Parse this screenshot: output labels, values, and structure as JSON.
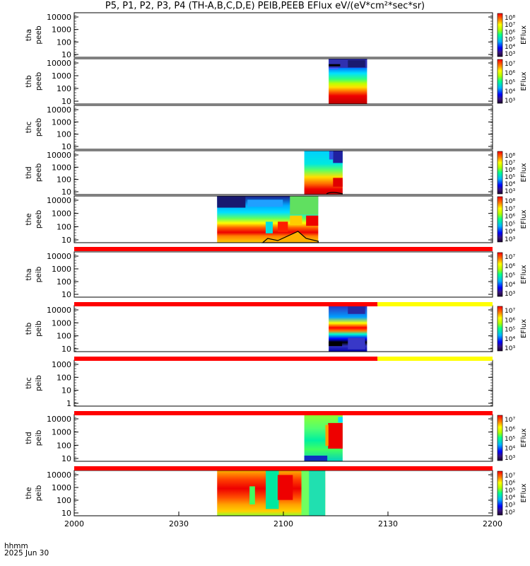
{
  "title": "P5, P1, P2, P3, P4 (TH-A,B,C,D,E) PEIB,PEEB EFlux eV/(eV*cm²*sec*sr)",
  "footer": {
    "line1": "hhmm",
    "line2": "2025 Jun 30"
  },
  "colors": {
    "status_red": "#ff0000",
    "status_yellow": "#ffff00"
  },
  "chart_data": {
    "type": "heatmap",
    "x_ticks": [
      "2000",
      "2030",
      "2100",
      "2130",
      "2200"
    ],
    "panels": [
      {
        "id": "tha-peeb",
        "ylabel": [
          "tha",
          "peeb"
        ],
        "yticks": [
          "10000",
          "1000",
          "100",
          "10"
        ],
        "cbar_label": "EFlux",
        "cbar_ticks": [
          "10⁸",
          "10⁷",
          "10⁶",
          "10⁵",
          "10⁴",
          "10³"
        ],
        "blocks": []
      },
      {
        "id": "thb-peeb",
        "ylabel": [
          "thb",
          "peeb"
        ],
        "yticks": [
          "10000",
          "1000",
          "100",
          "10"
        ],
        "cbar_label": "EFlux",
        "cbar_ticks": [
          "10⁷",
          "10⁶",
          "10⁵",
          "10⁴",
          "10³"
        ],
        "blocks": [
          {
            "kind": "thb_e",
            "start": "21:13",
            "end": "21:24"
          }
        ]
      },
      {
        "id": "thc-peeb",
        "ylabel": [
          "thc",
          "peeb"
        ],
        "yticks": [
          "10000",
          "1000",
          "100",
          "10"
        ],
        "cbar_label": "",
        "cbar_ticks": [],
        "blocks": []
      },
      {
        "id": "thd-peeb",
        "ylabel": [
          "thd",
          "peeb"
        ],
        "yticks": [
          "10000",
          "1000",
          "100",
          "10"
        ],
        "cbar_label": "EFlux",
        "cbar_ticks": [
          "10⁸",
          "10⁷",
          "10⁶",
          "10⁵",
          "10⁴",
          "10³"
        ],
        "blocks": [
          {
            "kind": "thd_e",
            "start": "21:06",
            "end": "21:17"
          }
        ]
      },
      {
        "id": "the-peeb",
        "ylabel": [
          "the",
          "peeb"
        ],
        "yticks": [
          "10000",
          "1000",
          "100",
          "10"
        ],
        "cbar_label": "EFlux",
        "cbar_ticks": [
          "10⁸",
          "10⁷",
          "10⁶",
          "10⁵",
          "10⁴",
          "10³"
        ],
        "blocks": [
          {
            "kind": "the_e",
            "start": "20:41",
            "end": "21:10"
          }
        ]
      },
      {
        "id": "tha-peib",
        "ylabel": [
          "tha",
          "peib"
        ],
        "yticks": [
          "10000",
          "1000",
          "100",
          "10"
        ],
        "cbar_label": "EFlux",
        "cbar_ticks": [
          "10⁷",
          "10⁶",
          "10⁵",
          "10⁴",
          "10³"
        ],
        "blocks": []
      },
      {
        "id": "thb-peib",
        "ylabel": [
          "thb",
          "peib"
        ],
        "yticks": [
          "10000",
          "1000",
          "100",
          "10"
        ],
        "cbar_label": "EFlux",
        "cbar_ticks": [
          "10⁷",
          "10⁶",
          "10⁵",
          "10⁴",
          "10³"
        ],
        "blocks": [
          {
            "kind": "thb_i",
            "start": "21:13",
            "end": "21:24"
          }
        ]
      },
      {
        "id": "thc-peib",
        "ylabel": [
          "thc",
          "peib"
        ],
        "yticks": [
          "1000",
          "100",
          "10",
          "1"
        ],
        "cbar_label": "",
        "cbar_ticks": [],
        "blocks": []
      },
      {
        "id": "thd-peib",
        "ylabel": [
          "thd",
          "peib"
        ],
        "yticks": [
          "10000",
          "1000",
          "100",
          "10"
        ],
        "cbar_label": "EFlux",
        "cbar_ticks": [
          "10⁷",
          "10⁶",
          "10⁵",
          "10⁴",
          "10³"
        ],
        "blocks": [
          {
            "kind": "thd_i",
            "start": "21:06",
            "end": "21:17"
          }
        ]
      },
      {
        "id": "the-peib",
        "ylabel": [
          "the",
          "peib"
        ],
        "yticks": [
          "10000",
          "1000",
          "100",
          "10"
        ],
        "cbar_label": "EFlux",
        "cbar_ticks": [
          "10⁷",
          "10⁶",
          "10⁵",
          "10⁴",
          "10³",
          "10²"
        ],
        "blocks": [
          {
            "kind": "the_i",
            "start": "20:41",
            "end": "21:12"
          }
        ]
      }
    ],
    "status_bars": [
      {
        "after_panel": "the-peeb",
        "segments": [
          {
            "color": "red",
            "start": "20:00",
            "end": "22:00"
          }
        ]
      },
      {
        "after_panel": "tha-peib",
        "segments": [
          {
            "color": "red",
            "start": "20:00",
            "end": "21:27"
          },
          {
            "color": "yellow",
            "start": "21:27",
            "end": "22:00"
          }
        ]
      },
      {
        "after_panel": "thb-peib",
        "segments": [
          {
            "color": "red",
            "start": "20:00",
            "end": "21:27"
          },
          {
            "color": "yellow",
            "start": "21:27",
            "end": "22:00"
          }
        ]
      },
      {
        "after_panel": "thc-peib",
        "segments": [
          {
            "color": "red",
            "start": "20:00",
            "end": "22:00"
          }
        ]
      },
      {
        "after_panel": "thd-peib",
        "segments": [
          {
            "color": "red",
            "start": "20:00",
            "end": "22:00"
          }
        ]
      }
    ]
  }
}
